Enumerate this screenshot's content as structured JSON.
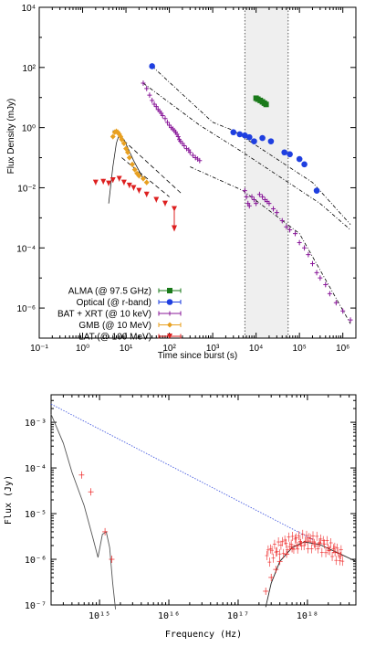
{
  "chart_data": [
    {
      "type": "scatter",
      "xlabel": "Time since burst (s)",
      "ylabel": "Flux Density (mJy)",
      "xscale": "log",
      "yscale": "log",
      "xlim": [
        0.1,
        2000000
      ],
      "ylim": [
        1e-07,
        10000
      ],
      "x_ticks": [
        "10⁻¹",
        "10⁰",
        "10¹",
        "10²",
        "10³",
        "10⁴",
        "10⁵",
        "10⁶"
      ],
      "y_ticks": [
        "10⁴",
        "10²",
        "10⁰",
        "10⁻²",
        "10⁻⁴",
        "10⁻⁶"
      ],
      "legend_position": "bottom-left",
      "shaded_band": {
        "x": [
          5500,
          55000
        ]
      },
      "series": [
        {
          "name": "ALMA (@ 97.5 GHz)",
          "color": "#1a7a1a",
          "marker": "square",
          "x": [
            10000,
            11000,
            12500,
            14000,
            15500,
            17000
          ],
          "y": [
            9.5,
            8.8,
            8.0,
            7.2,
            6.5,
            5.9
          ]
        },
        {
          "name": "Optical (@ r-band)",
          "color": "#1f3fe0",
          "marker": "circle",
          "x": [
            40,
            3000,
            4200,
            5500,
            7000,
            9000,
            14000,
            22000,
            45000,
            60000,
            100000,
            130000,
            250000
          ],
          "y": [
            110,
            0.7,
            0.6,
            0.55,
            0.48,
            0.35,
            0.45,
            0.35,
            0.15,
            0.13,
            0.09,
            0.06,
            0.008
          ]
        },
        {
          "name": "BAT + XRT (@ 10 keV)",
          "color": "#8a1a9a",
          "marker": "plus",
          "x": [
            25,
            30,
            35,
            40,
            45,
            50,
            55,
            60,
            65,
            70,
            80,
            90,
            100,
            110,
            120,
            130,
            140,
            150,
            160,
            170,
            180,
            200,
            220,
            250,
            280,
            300,
            350,
            400,
            450,
            500,
            5500,
            6000,
            6500,
            7000,
            8000,
            9000,
            10000,
            12000,
            14000,
            16000,
            18000,
            20000,
            25000,
            30000,
            40000,
            50000,
            60000,
            80000,
            100000,
            130000,
            160000,
            200000,
            250000,
            300000,
            400000,
            500000,
            700000,
            1000000,
            1500000
          ],
          "y": [
            30,
            20,
            12,
            8,
            6,
            5,
            4,
            3.5,
            3,
            2.5,
            2,
            1.5,
            1.2,
            1.0,
            0.9,
            0.8,
            0.7,
            0.6,
            0.5,
            0.4,
            0.35,
            0.3,
            0.25,
            0.2,
            0.18,
            0.15,
            0.12,
            0.1,
            0.09,
            0.08,
            0.008,
            0.005,
            0.003,
            0.0025,
            0.005,
            0.004,
            0.003,
            0.006,
            0.005,
            0.004,
            0.0035,
            0.003,
            0.002,
            0.0015,
            0.0008,
            0.0005,
            0.0004,
            0.0003,
            0.00015,
            0.0001,
            6e-05,
            3e-05,
            1.5e-05,
            1e-05,
            6e-06,
            3e-06,
            1.5e-06,
            8e-07,
            4e-07
          ]
        },
        {
          "name": "GMB (@ 10 MeV)",
          "color": "#e8a020",
          "marker": "diamond",
          "x": [
            5,
            5.5,
            6,
            6.5,
            7,
            7.5,
            8,
            9,
            10,
            11,
            12,
            14,
            16,
            18,
            20,
            25,
            30
          ],
          "y": [
            0.5,
            0.7,
            0.75,
            0.7,
            0.6,
            0.5,
            0.4,
            0.3,
            0.2,
            0.15,
            0.1,
            0.06,
            0.04,
            0.03,
            0.025,
            0.02,
            0.015
          ]
        },
        {
          "name": "LAT (@ 100 MeV)",
          "color": "#dd2020",
          "marker": "triangle-down",
          "x": [
            2,
            3,
            4,
            5,
            7,
            9,
            12,
            15,
            20,
            30,
            50,
            80,
            130
          ],
          "y": [
            0.015,
            0.016,
            0.014,
            0.018,
            0.02,
            0.015,
            0.012,
            0.01,
            0.008,
            0.006,
            0.004,
            0.003,
            0.002
          ]
        }
      ]
    },
    {
      "type": "scatter",
      "xlabel": "Frequency (Hz)",
      "ylabel": "Flux (Jy)",
      "xscale": "log",
      "yscale": "log",
      "xlim": [
        200000000000000,
        5000000000000000000
      ],
      "ylim": [
        1e-07,
        0.004
      ],
      "x_ticks": [
        "10¹⁵",
        "10¹⁶",
        "10¹⁷",
        "10¹⁸"
      ],
      "y_ticks": [
        "10⁻³",
        "10⁻⁴",
        "10⁻⁵",
        "10⁻⁶",
        "10⁻⁷"
      ],
      "series": [
        {
          "color": "#ee2020",
          "marker": "plus",
          "x": [
            550000000000000,
            750000000000000,
            1200000000000000,
            1500000000000000,
            250000000000000000,
            300000000000000000,
            350000000000000000,
            400000000000000000,
            500000000000000000,
            600000000000000000,
            700000000000000000,
            800000000000000000,
            1000000000000000000,
            1200000000000000000,
            1500000000000000000,
            2000000000000000000,
            2500000000000000000,
            3000000000000000000
          ],
          "y": [
            7e-05,
            3e-05,
            4e-06,
            1e-06,
            2e-07,
            4e-07,
            6e-07,
            9e-07,
            1.3e-06,
            1.7e-06,
            2e-06,
            2.3e-06,
            2.5e-06,
            2.4e-06,
            2.2e-06,
            1.8e-06,
            1.4e-06,
            1.2e-06
          ]
        }
      ]
    }
  ]
}
